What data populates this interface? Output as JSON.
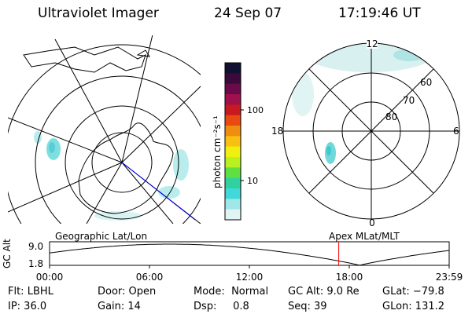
{
  "header": {
    "title": "Ultraviolet Imager",
    "date": "24 Sep 07",
    "time": "17:19:46 UT"
  },
  "left_panel": {
    "label": "Geographic Lat/Lon"
  },
  "right_panel": {
    "label": "Apex MLat/MLT",
    "mlt_labels": {
      "top": "12",
      "bottom": "0",
      "left": "18",
      "right": "6"
    },
    "lat_labels": [
      "60",
      "70",
      "80"
    ]
  },
  "colorbar": {
    "unit_label": "photon cm⁻²s⁻¹",
    "ticks": [
      {
        "label": "100",
        "frac": 0.3
      },
      {
        "label": "10",
        "frac": 0.75
      }
    ],
    "colors": [
      "#101030",
      "#3a0a3a",
      "#6a0a4a",
      "#a0104a",
      "#c81820",
      "#e84a10",
      "#f08c10",
      "#f8c010",
      "#f0f010",
      "#b8f020",
      "#60e040",
      "#30d0a0",
      "#40d8d8",
      "#a0e8e8",
      "#e0f4f4"
    ]
  },
  "altitude_plot": {
    "axis_label": "GC Alt",
    "y_ticks": [
      "9.0",
      "1.8"
    ],
    "x_ticks": [
      "00:00",
      "06:00",
      "12:00",
      "18:00",
      "23:59"
    ],
    "current_time_frac": 0.7236,
    "marker_color": "#ff0000"
  },
  "info": {
    "col1": [
      "Flt: LBHL",
      "IP: 36.0"
    ],
    "col2": [
      "Door: Open",
      "Gain: 14"
    ],
    "col3": [
      "Mode:  Normal",
      "Dsp:     0.8"
    ],
    "col4": [
      "GC Alt: 9.0 Re",
      "Seq: 39"
    ],
    "col5": [
      "GLat: −79.8",
      "GLon: 131.2"
    ]
  }
}
